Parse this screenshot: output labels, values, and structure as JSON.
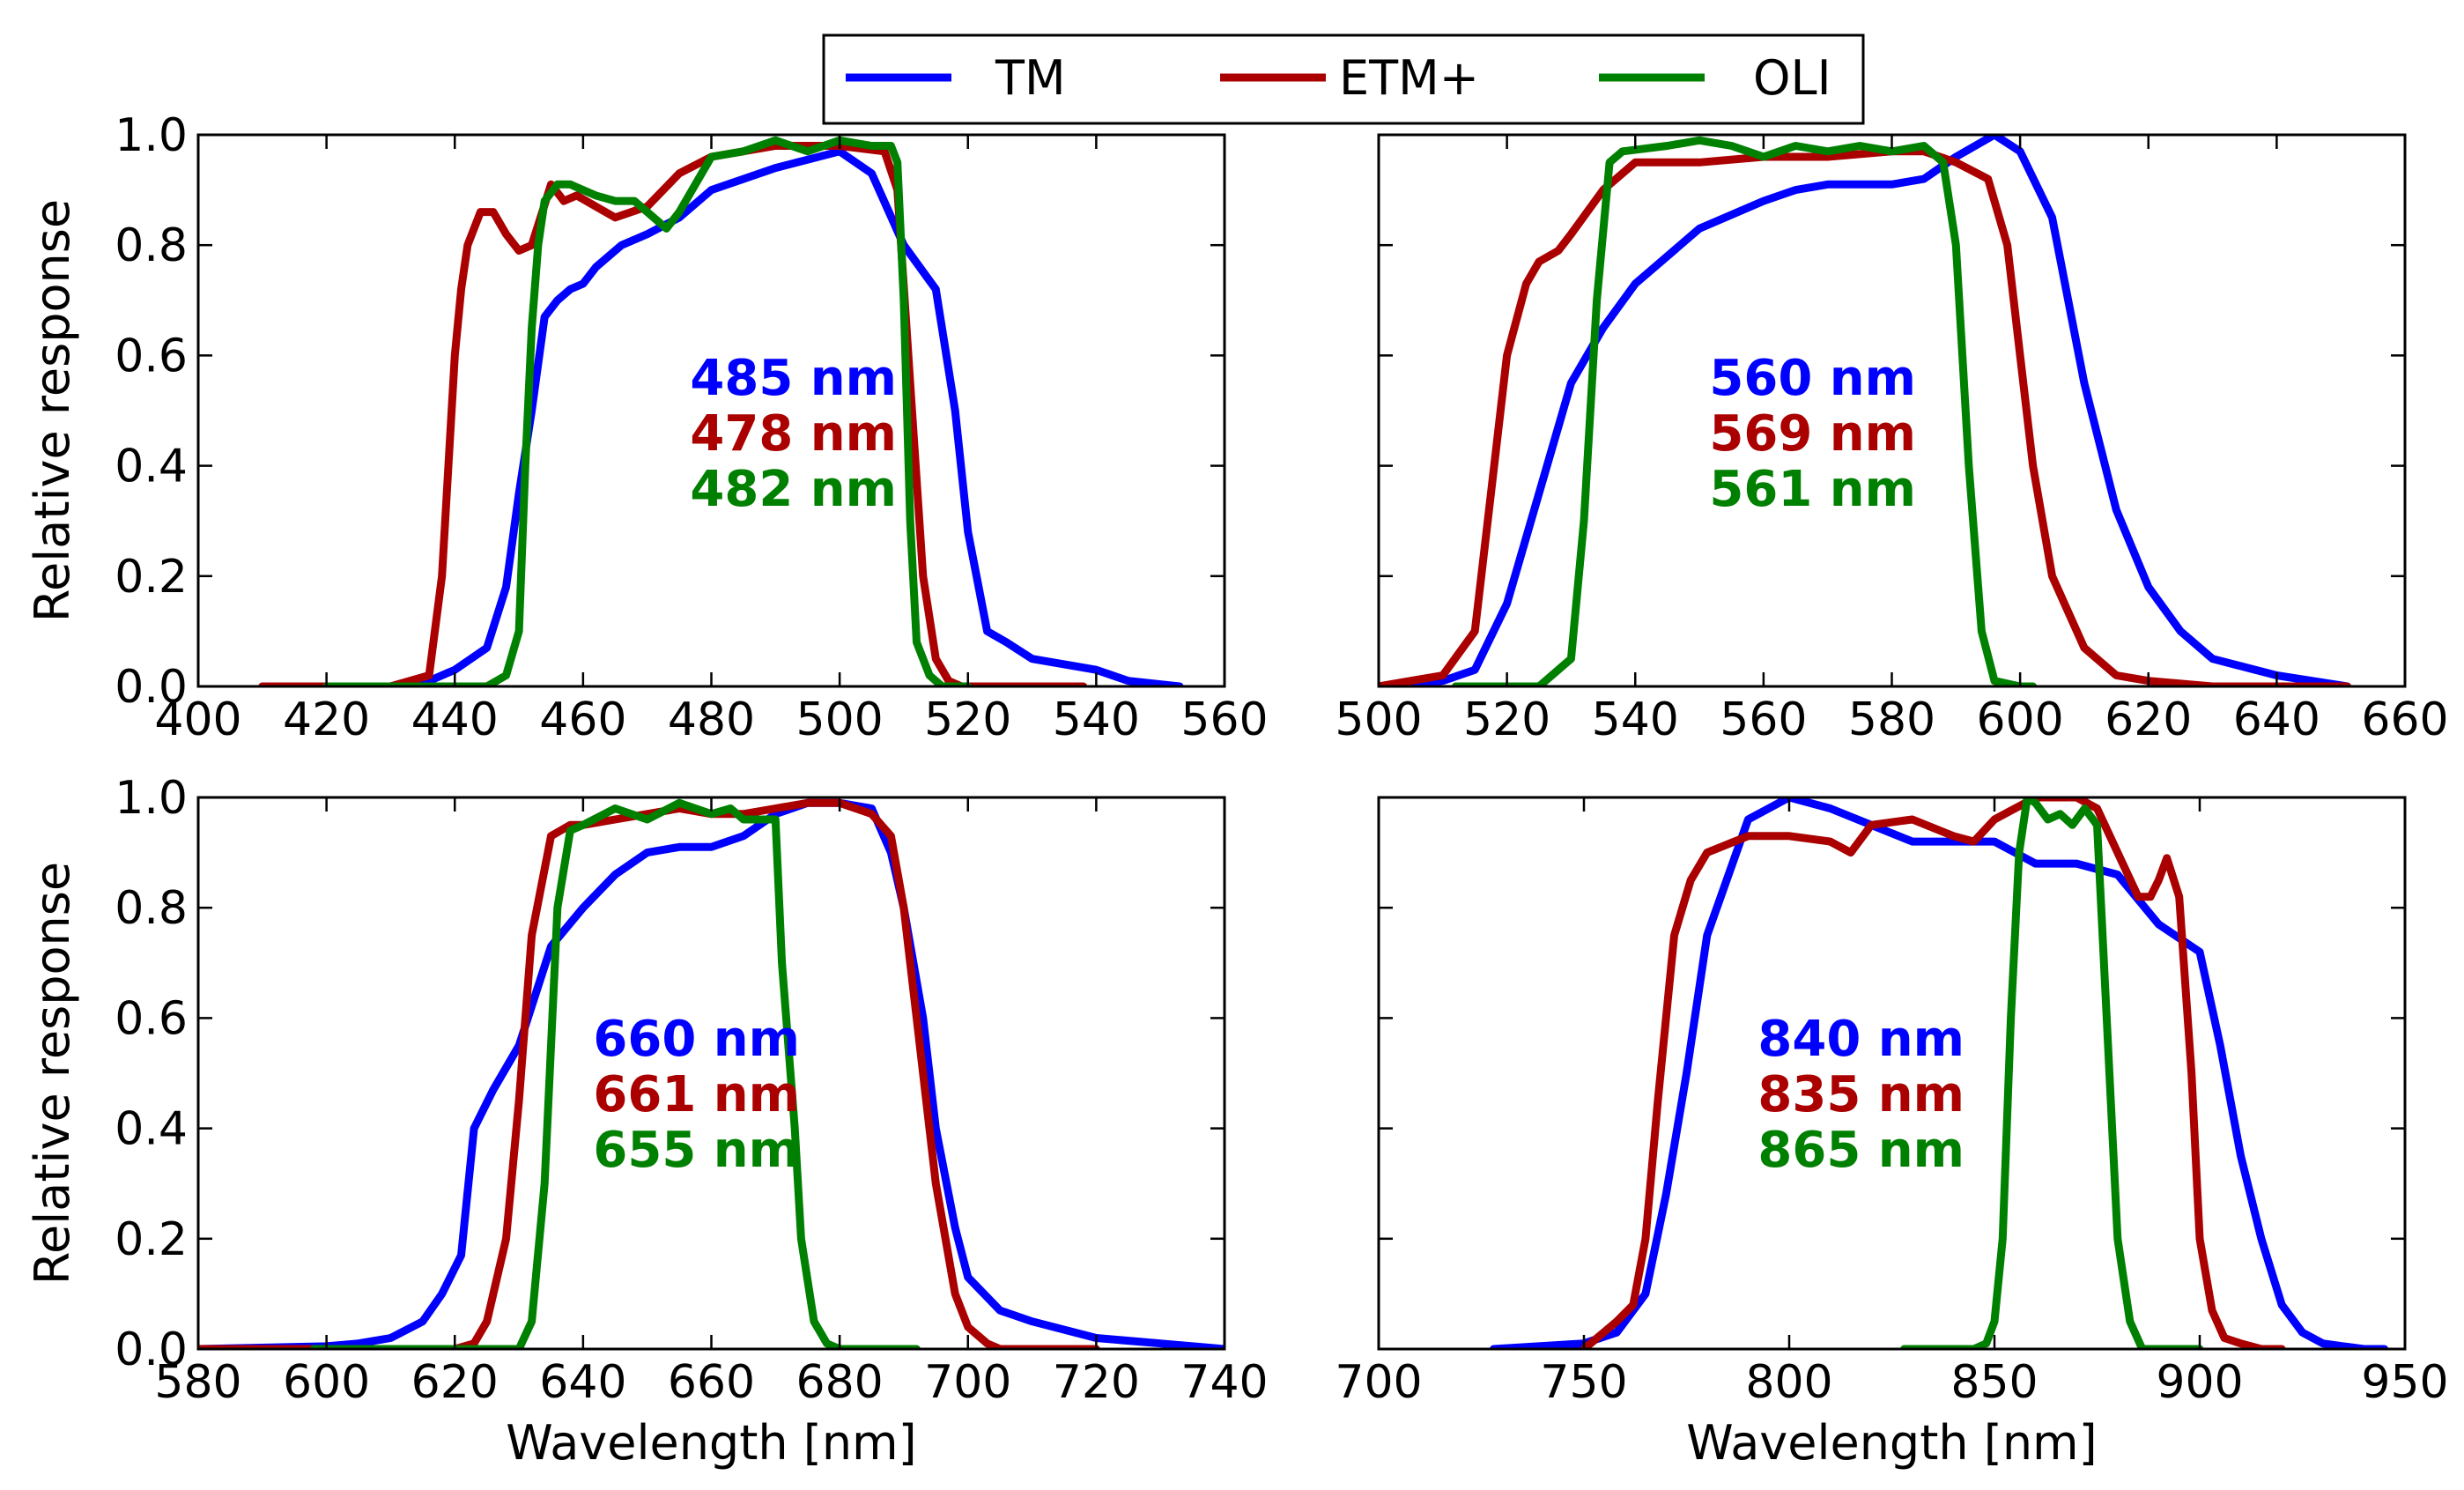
{
  "legend": {
    "entries": [
      {
        "name": "TM",
        "color": "#0000ff"
      },
      {
        "name": "ETM+",
        "color": "#aa0000"
      },
      {
        "name": "OLI",
        "color": "#008000"
      }
    ]
  },
  "chart_data": [
    {
      "type": "line",
      "title": "",
      "xlabel": "",
      "ylabel": "Relative response",
      "xlim": [
        400,
        560
      ],
      "ylim": [
        0,
        1
      ],
      "xticks": [
        "400",
        "420",
        "440",
        "460",
        "480",
        "500",
        "520",
        "540",
        "560"
      ],
      "yticks": [
        "0.0",
        "0.2",
        "0.4",
        "0.6",
        "0.8",
        "1.0"
      ],
      "series": [
        {
          "name": "TM",
          "color": "#0000ff",
          "x": [
            410,
            430,
            436,
            440,
            445,
            448,
            450,
            452,
            454,
            456,
            458,
            460,
            462,
            466,
            470,
            475,
            480,
            490,
            500,
            505,
            510,
            515,
            518,
            520,
            523,
            526,
            530,
            540,
            545,
            553
          ],
          "y": [
            0,
            0,
            0.01,
            0.03,
            0.07,
            0.18,
            0.35,
            0.5,
            0.67,
            0.7,
            0.72,
            0.73,
            0.76,
            0.8,
            0.82,
            0.85,
            0.9,
            0.94,
            0.97,
            0.93,
            0.8,
            0.72,
            0.5,
            0.28,
            0.1,
            0.08,
            0.05,
            0.03,
            0.01,
            0
          ]
        },
        {
          "name": "ETM+",
          "color": "#aa0000",
          "x": [
            410,
            430,
            436,
            438,
            440,
            441,
            442,
            444,
            446,
            448,
            450,
            452,
            455,
            457,
            459,
            462,
            465,
            470,
            475,
            480,
            490,
            500,
            507,
            509,
            511,
            513,
            515,
            517,
            519,
            525,
            538
          ],
          "y": [
            0,
            0,
            0.02,
            0.2,
            0.6,
            0.72,
            0.8,
            0.86,
            0.86,
            0.82,
            0.79,
            0.8,
            0.91,
            0.88,
            0.89,
            0.87,
            0.85,
            0.87,
            0.93,
            0.96,
            0.98,
            0.98,
            0.97,
            0.9,
            0.55,
            0.2,
            0.05,
            0.01,
            0,
            0,
            0
          ]
        },
        {
          "name": "OLI",
          "color": "#008000",
          "x": [
            420,
            445,
            448,
            450,
            451,
            452,
            453,
            454,
            456,
            458,
            460,
            462,
            465,
            468,
            470,
            473,
            475,
            478,
            480,
            485,
            490,
            495,
            500,
            505,
            508,
            509,
            510,
            511,
            512,
            514,
            516,
            520
          ],
          "y": [
            0,
            0,
            0.02,
            0.1,
            0.4,
            0.65,
            0.8,
            0.88,
            0.91,
            0.91,
            0.9,
            0.89,
            0.88,
            0.88,
            0.86,
            0.83,
            0.86,
            0.92,
            0.96,
            0.97,
            0.99,
            0.97,
            0.99,
            0.98,
            0.98,
            0.95,
            0.7,
            0.3,
            0.08,
            0.02,
            0,
            0
          ]
        }
      ],
      "annotations": [
        {
          "text": "485 nm",
          "color": "#0000ff"
        },
        {
          "text": "478 nm",
          "color": "#aa0000"
        },
        {
          "text": "482 nm",
          "color": "#008000"
        }
      ]
    },
    {
      "type": "line",
      "title": "",
      "xlabel": "",
      "ylabel": "",
      "xlim": [
        500,
        660
      ],
      "ylim": [
        0,
        1
      ],
      "xticks": [
        "500",
        "520",
        "540",
        "560",
        "580",
        "600",
        "620",
        "640",
        "660"
      ],
      "yticks": [],
      "series": [
        {
          "name": "TM",
          "color": "#0000ff",
          "x": [
            500,
            510,
            515,
            520,
            525,
            530,
            535,
            540,
            550,
            560,
            565,
            570,
            575,
            580,
            585,
            590,
            596,
            600,
            605,
            610,
            615,
            620,
            625,
            630,
            640,
            651
          ],
          "y": [
            0,
            0.01,
            0.03,
            0.15,
            0.35,
            0.55,
            0.65,
            0.73,
            0.83,
            0.88,
            0.9,
            0.91,
            0.91,
            0.91,
            0.92,
            0.96,
            1.0,
            0.97,
            0.85,
            0.55,
            0.32,
            0.18,
            0.1,
            0.05,
            0.02,
            0
          ]
        },
        {
          "name": "ETM+",
          "color": "#aa0000",
          "x": [
            500,
            505,
            510,
            515,
            518,
            520,
            523,
            525,
            528,
            530,
            535,
            540,
            550,
            560,
            570,
            580,
            585,
            590,
            595,
            598,
            600,
            602,
            605,
            610,
            615,
            620,
            630,
            651
          ],
          "y": [
            0,
            0.01,
            0.02,
            0.1,
            0.4,
            0.6,
            0.73,
            0.77,
            0.79,
            0.82,
            0.9,
            0.95,
            0.95,
            0.96,
            0.96,
            0.97,
            0.97,
            0.95,
            0.92,
            0.8,
            0.6,
            0.4,
            0.2,
            0.07,
            0.02,
            0.01,
            0,
            0
          ]
        },
        {
          "name": "OLI",
          "color": "#008000",
          "x": [
            512,
            525,
            530,
            532,
            534,
            536,
            538,
            545,
            550,
            555,
            560,
            565,
            570,
            575,
            580,
            585,
            588,
            590,
            592,
            594,
            596,
            600,
            602
          ],
          "y": [
            0,
            0,
            0.05,
            0.3,
            0.7,
            0.95,
            0.97,
            0.98,
            0.99,
            0.98,
            0.96,
            0.98,
            0.97,
            0.98,
            0.97,
            0.98,
            0.95,
            0.8,
            0.4,
            0.1,
            0.01,
            0,
            0
          ]
        }
      ],
      "annotations": [
        {
          "text": "560 nm",
          "color": "#0000ff"
        },
        {
          "text": "569 nm",
          "color": "#aa0000"
        },
        {
          "text": "561 nm",
          "color": "#008000"
        }
      ]
    },
    {
      "type": "line",
      "title": "",
      "xlabel": "Wavelength [nm]",
      "ylabel": "Relative response",
      "xlim": [
        580,
        740
      ],
      "ylim": [
        0,
        1
      ],
      "xticks": [
        "580",
        "600",
        "620",
        "640",
        "660",
        "680",
        "700",
        "720",
        "740"
      ],
      "yticks": [
        "0.0",
        "0.2",
        "0.4",
        "0.6",
        "0.8",
        "1.0"
      ],
      "series": [
        {
          "name": "TM",
          "color": "#0000ff",
          "x": [
            580,
            600,
            605,
            610,
            615,
            618,
            621,
            623,
            626,
            630,
            635,
            640,
            645,
            650,
            655,
            660,
            665,
            670,
            675,
            680,
            685,
            688,
            690,
            693,
            695,
            698,
            700,
            705,
            710,
            720,
            730,
            740
          ],
          "y": [
            0,
            0.005,
            0.01,
            0.02,
            0.05,
            0.1,
            0.17,
            0.4,
            0.47,
            0.55,
            0.73,
            0.8,
            0.86,
            0.9,
            0.91,
            0.91,
            0.93,
            0.97,
            0.99,
            0.99,
            0.98,
            0.9,
            0.8,
            0.6,
            0.4,
            0.22,
            0.13,
            0.07,
            0.05,
            0.02,
            0.01,
            0
          ]
        },
        {
          "name": "ETM+",
          "color": "#aa0000",
          "x": [
            580,
            620,
            623,
            625,
            628,
            630,
            632,
            635,
            638,
            640,
            645,
            650,
            655,
            660,
            665,
            670,
            675,
            680,
            685,
            688,
            690,
            692,
            695,
            698,
            700,
            703,
            705,
            710,
            720
          ],
          "y": [
            0,
            0,
            0.01,
            0.05,
            0.2,
            0.45,
            0.75,
            0.93,
            0.95,
            0.95,
            0.96,
            0.97,
            0.98,
            0.97,
            0.97,
            0.98,
            0.99,
            0.99,
            0.97,
            0.93,
            0.8,
            0.6,
            0.3,
            0.1,
            0.04,
            0.01,
            0,
            0,
            0
          ]
        },
        {
          "name": "OLI",
          "color": "#008000",
          "x": [
            598,
            630,
            632,
            634,
            636,
            638,
            640,
            645,
            650,
            655,
            660,
            663,
            665,
            670,
            671,
            673,
            674,
            676,
            678,
            680,
            692
          ],
          "y": [
            0,
            0,
            0.05,
            0.3,
            0.8,
            0.94,
            0.95,
            0.98,
            0.96,
            0.99,
            0.97,
            0.98,
            0.96,
            0.96,
            0.7,
            0.4,
            0.2,
            0.05,
            0.01,
            0,
            0
          ]
        }
      ],
      "annotations": [
        {
          "text": "660 nm",
          "color": "#0000ff"
        },
        {
          "text": "661 nm",
          "color": "#aa0000"
        },
        {
          "text": "655 nm",
          "color": "#008000"
        }
      ]
    },
    {
      "type": "line",
      "title": "",
      "xlabel": "Wavelength [nm]",
      "ylabel": "",
      "xlim": [
        700,
        950
      ],
      "ylim": [
        0,
        1
      ],
      "xticks": [
        "700",
        "750",
        "800",
        "850",
        "900",
        "950"
      ],
      "yticks": [],
      "series": [
        {
          "name": "TM",
          "color": "#0000ff",
          "x": [
            728,
            750,
            758,
            765,
            770,
            775,
            780,
            790,
            800,
            810,
            820,
            830,
            850,
            860,
            870,
            880,
            890,
            900,
            905,
            910,
            915,
            920,
            925,
            930,
            935,
            940,
            945
          ],
          "y": [
            0,
            0.01,
            0.03,
            0.1,
            0.28,
            0.5,
            0.75,
            0.96,
            1.0,
            0.98,
            0.95,
            0.92,
            0.92,
            0.88,
            0.88,
            0.86,
            0.77,
            0.72,
            0.55,
            0.35,
            0.2,
            0.08,
            0.03,
            0.01,
            0.005,
            0,
            0
          ]
        },
        {
          "name": "ETM+",
          "color": "#aa0000",
          "x": [
            750,
            758,
            762,
            765,
            768,
            772,
            776,
            780,
            790,
            800,
            810,
            815,
            820,
            830,
            840,
            845,
            850,
            855,
            860,
            870,
            875,
            880,
            885,
            888,
            890,
            892,
            895,
            898,
            900,
            903,
            906,
            910,
            915,
            920
          ],
          "y": [
            0,
            0.05,
            0.08,
            0.2,
            0.45,
            0.75,
            0.85,
            0.9,
            0.93,
            0.93,
            0.92,
            0.9,
            0.95,
            0.96,
            0.93,
            0.92,
            0.96,
            0.98,
            1.0,
            1.0,
            0.98,
            0.9,
            0.82,
            0.82,
            0.85,
            0.89,
            0.82,
            0.5,
            0.2,
            0.07,
            0.02,
            0.01,
            0,
            0
          ]
        },
        {
          "name": "OLI",
          "color": "#008000",
          "x": [
            828,
            845,
            848,
            850,
            852,
            854,
            856,
            858,
            860,
            863,
            866,
            869,
            872,
            875,
            876,
            878,
            880,
            883,
            886,
            900
          ],
          "y": [
            0,
            0,
            0.01,
            0.05,
            0.2,
            0.6,
            0.9,
            1.0,
            0.99,
            0.96,
            0.97,
            0.95,
            0.98,
            0.95,
            0.8,
            0.5,
            0.2,
            0.05,
            0,
            0
          ]
        }
      ],
      "annotations": [
        {
          "text": "840 nm",
          "color": "#0000ff"
        },
        {
          "text": "835 nm",
          "color": "#aa0000"
        },
        {
          "text": "865 nm",
          "color": "#008000"
        }
      ]
    }
  ]
}
